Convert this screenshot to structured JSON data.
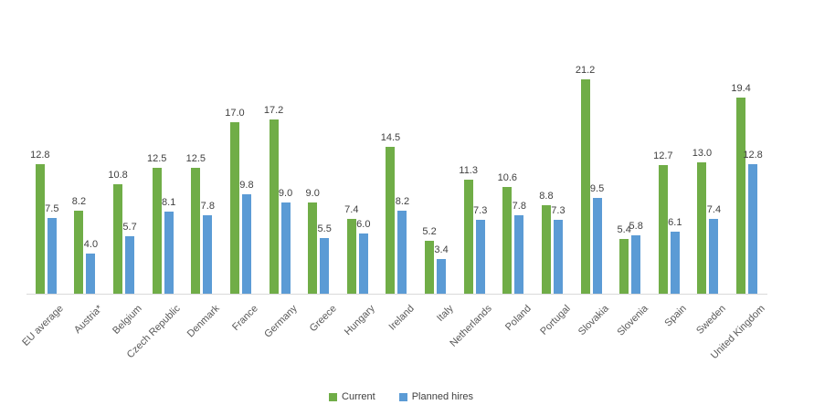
{
  "chart_data": {
    "type": "bar",
    "categories": [
      "EU average",
      "Austria*",
      "Belgium",
      "Czech Republic",
      "Denmark",
      "France",
      "Germany",
      "Greece",
      "Hungary",
      "Ireland",
      "Italy",
      "Netherlands",
      "Poland",
      "Portugal",
      "Slovakia",
      "Slovenia",
      "Spain",
      "Sweden",
      "United Kingdom"
    ],
    "series": [
      {
        "name": "Current",
        "color": "#70AD47",
        "values": [
          12.8,
          8.2,
          10.8,
          12.5,
          12.5,
          17.0,
          17.2,
          9.0,
          7.4,
          14.5,
          5.2,
          11.3,
          10.6,
          8.8,
          21.2,
          5.4,
          12.7,
          13.0,
          19.4
        ]
      },
      {
        "name": "Planned hires",
        "color": "#5B9BD5",
        "values": [
          7.5,
          4.0,
          5.7,
          8.1,
          7.8,
          9.8,
          9.0,
          5.5,
          6.0,
          8.2,
          3.4,
          7.3,
          7.8,
          7.3,
          9.5,
          5.8,
          6.1,
          7.4,
          12.8
        ]
      }
    ],
    "title": "",
    "xlabel": "",
    "ylabel": "",
    "ylim": [
      0,
      23
    ],
    "grid": false,
    "value_labels": true,
    "value_label_color": "#404040",
    "category_label_color": "#595959",
    "axis_line_color": "#D9D9D9",
    "legend_position": "bottom"
  }
}
